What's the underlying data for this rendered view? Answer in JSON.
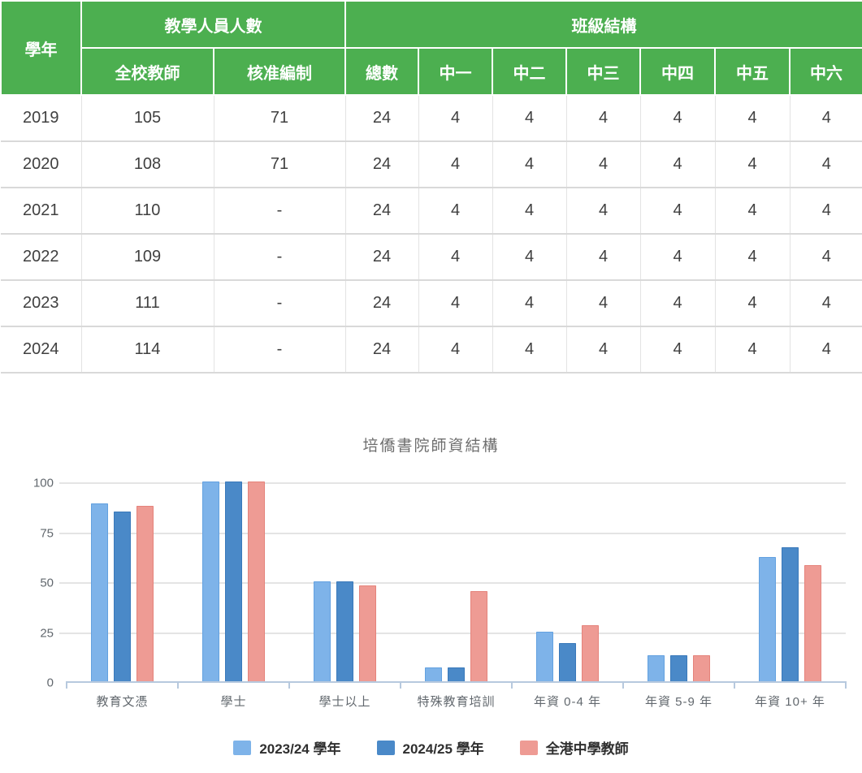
{
  "table": {
    "header": {
      "year": "學年",
      "teaching_staff_group": "教學人員人數",
      "class_structure_group": "班級結構",
      "sub": [
        "全校教師",
        "核准編制",
        "總數",
        "中一",
        "中二",
        "中三",
        "中四",
        "中五",
        "中六"
      ]
    },
    "rows": [
      [
        "2019",
        "105",
        "71",
        "24",
        "4",
        "4",
        "4",
        "4",
        "4",
        "4"
      ],
      [
        "2020",
        "108",
        "71",
        "24",
        "4",
        "4",
        "4",
        "4",
        "4",
        "4"
      ],
      [
        "2021",
        "110",
        "-",
        "24",
        "4",
        "4",
        "4",
        "4",
        "4",
        "4"
      ],
      [
        "2022",
        "109",
        "-",
        "24",
        "4",
        "4",
        "4",
        "4",
        "4",
        "4"
      ],
      [
        "2023",
        "111",
        "-",
        "24",
        "4",
        "4",
        "4",
        "4",
        "4",
        "4"
      ],
      [
        "2024",
        "114",
        "-",
        "24",
        "4",
        "4",
        "4",
        "4",
        "4",
        "4"
      ]
    ]
  },
  "colors": {
    "header_green": "#4CAF50",
    "axis": "#b7c9de",
    "grid": "#e4e4e4",
    "series_light_blue": "#7EB3E9",
    "series_dark_blue": "#4A89C8",
    "series_salmon": "#EE9B94"
  },
  "chart_data": {
    "type": "bar",
    "title": "培僑書院師資結構",
    "categories": [
      "教育文憑",
      "學士",
      "學士以上",
      "特殊教育培訓",
      "年資 0-4 年",
      "年資 5-9 年",
      "年資 10+ 年"
    ],
    "series": [
      {
        "name": "2023/24 學年",
        "color": "#7EB3E9",
        "border": "#63A1E0",
        "values": [
          89,
          100,
          50,
          7,
          25,
          13,
          62
        ]
      },
      {
        "name": "2024/25 學年",
        "color": "#4A89C8",
        "border": "#3A79BA",
        "values": [
          85,
          100,
          50,
          7,
          19,
          13,
          67
        ]
      },
      {
        "name": "全港中學教師",
        "color": "#EE9B94",
        "border": "#E5837B",
        "values": [
          88,
          100,
          48,
          45,
          28,
          13,
          58
        ]
      }
    ],
    "xlabel": "",
    "ylabel": "",
    "ylim": [
      0,
      100
    ],
    "yticks": [
      0,
      25,
      50,
      75,
      100
    ],
    "grid": true,
    "legend_position": "bottom"
  }
}
